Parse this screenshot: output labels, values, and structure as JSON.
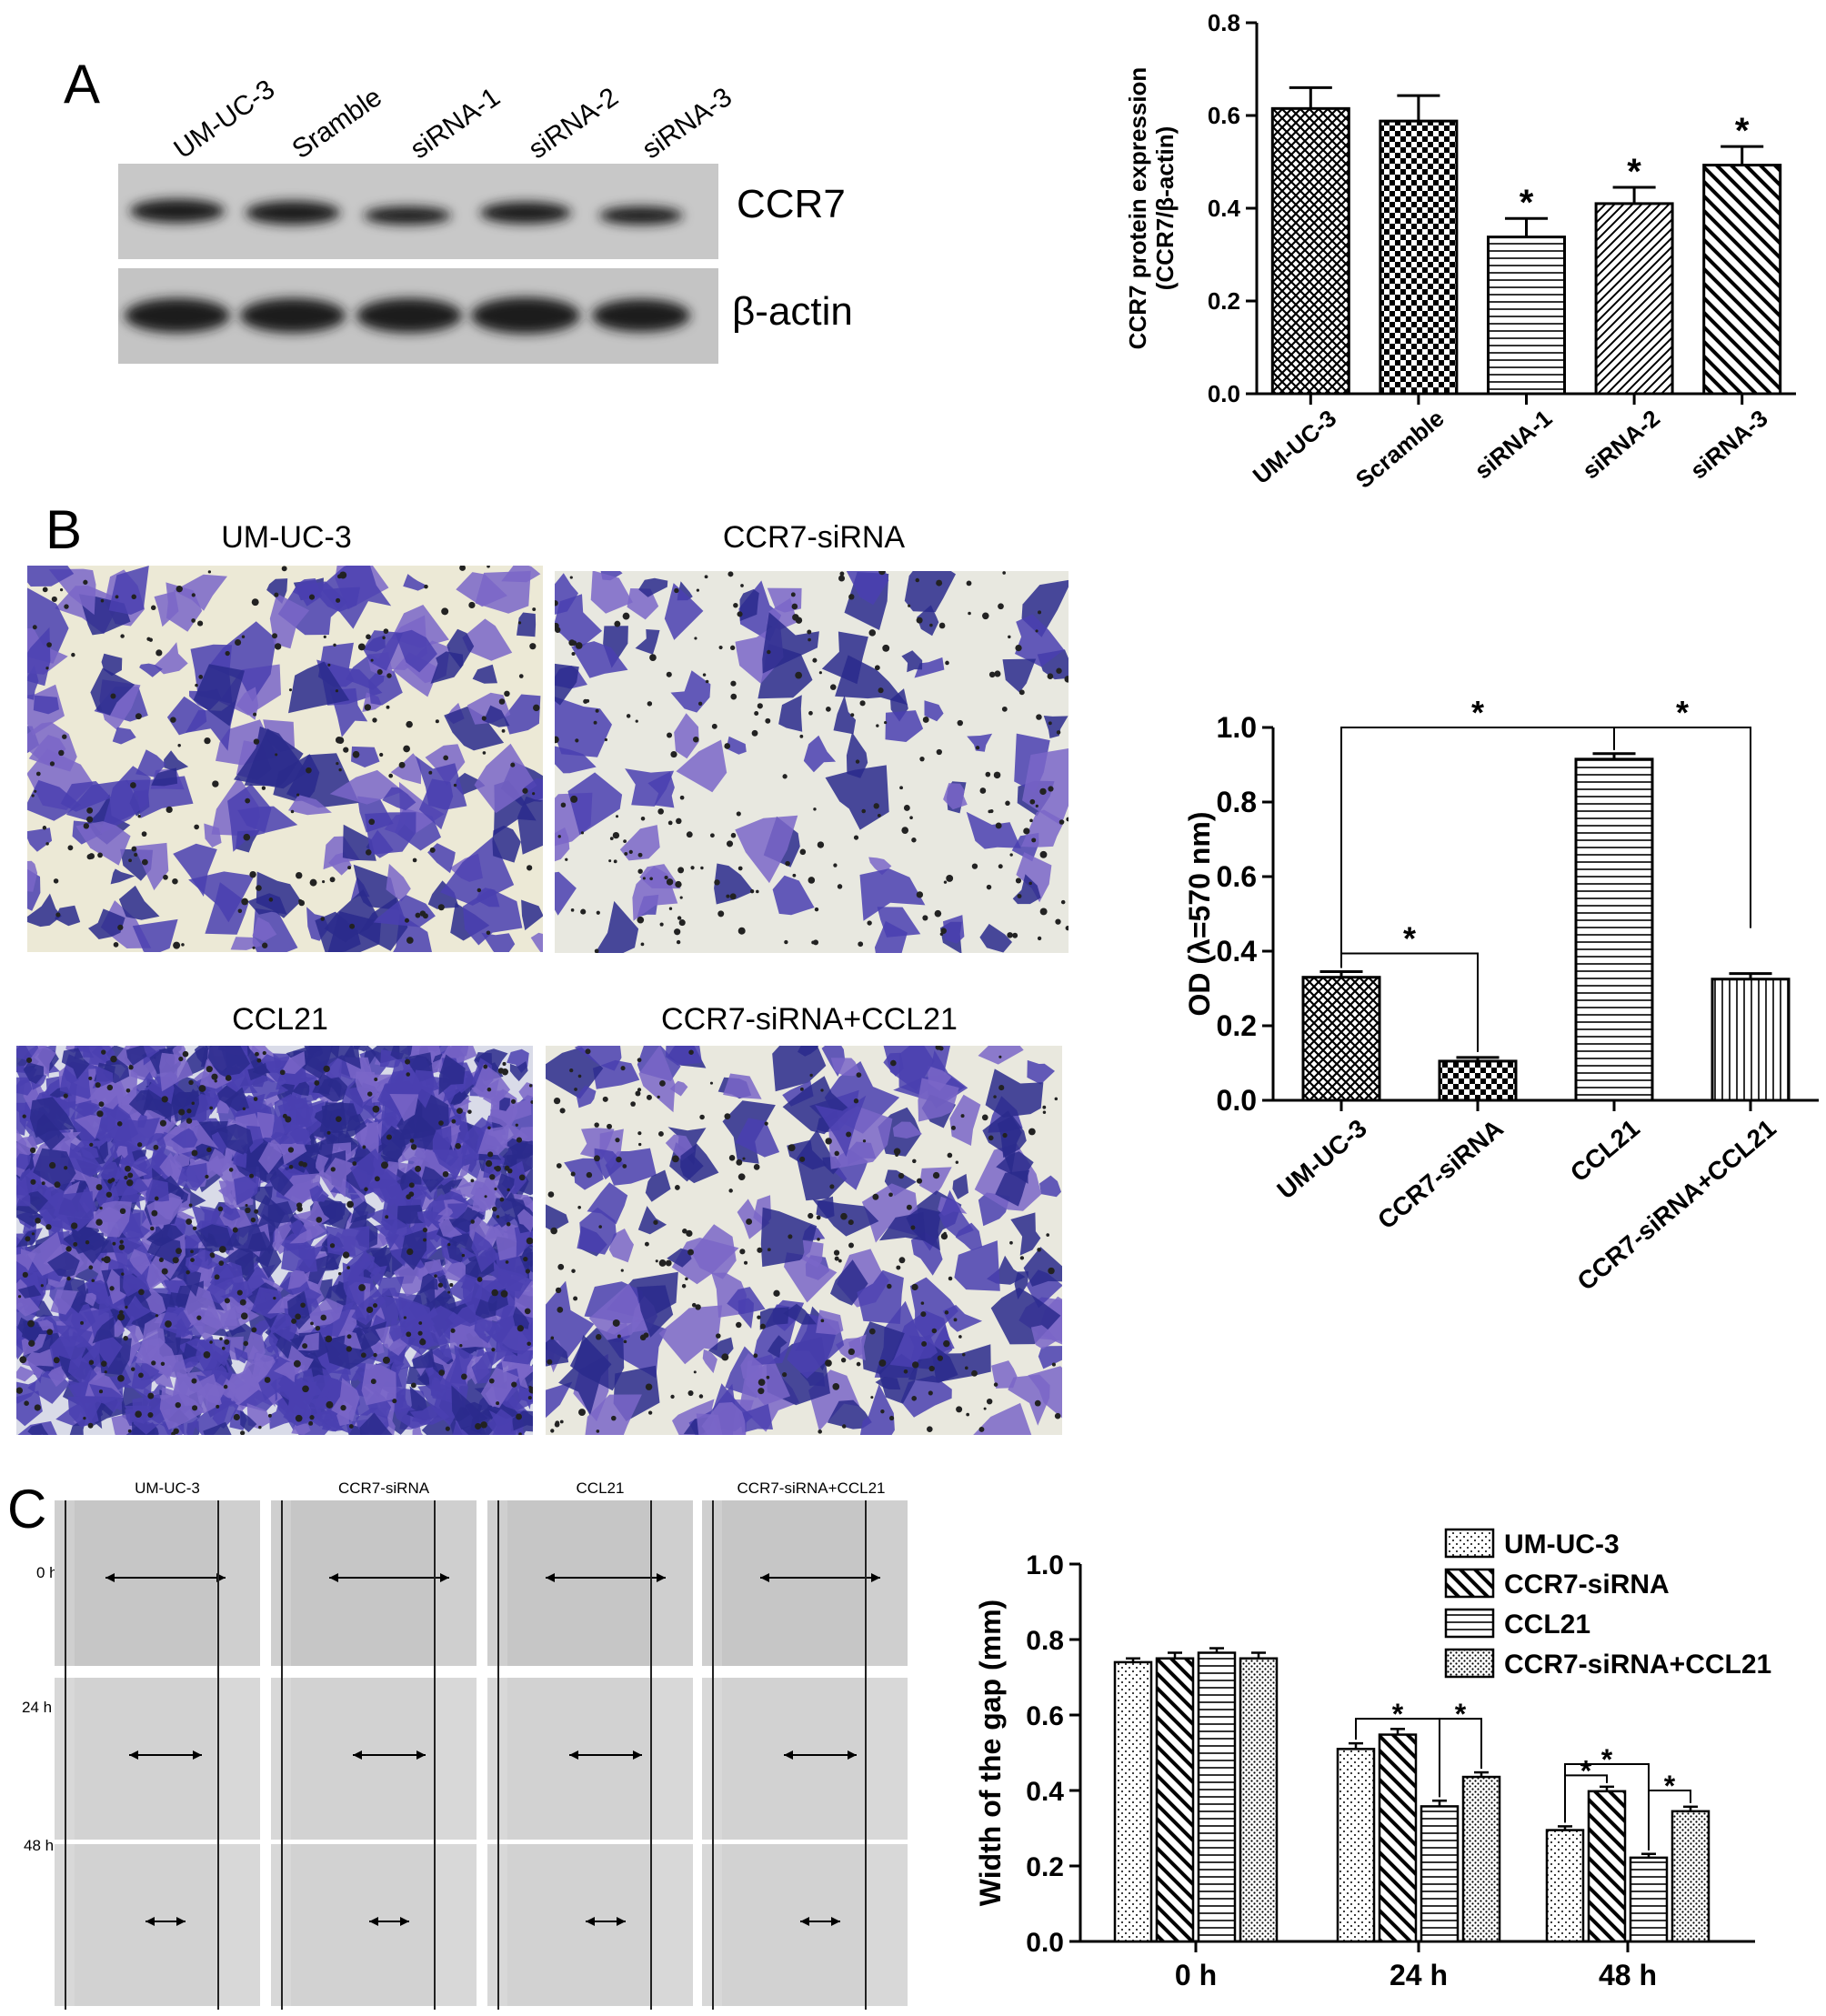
{
  "panels": {
    "a": "A",
    "b": "B",
    "c": "C"
  },
  "western_blot": {
    "lanes": [
      "UM-UC-3",
      "Sramble",
      "siRNA-1",
      "siRNA-2",
      "siRNA-3"
    ],
    "bands": [
      "CCR7",
      "β-actin"
    ]
  },
  "transwell": {
    "images": [
      "UM-UC-3",
      "CCR7-siRNA",
      "CCL21",
      "CCR7-siRNA+CCL21"
    ]
  },
  "wound": {
    "columns": [
      "UM-UC-3",
      "CCR7-siRNA",
      "CCL21",
      "CCR7-siRNA+CCL21"
    ],
    "rows": [
      "0 h",
      "24 h",
      "48 h"
    ]
  },
  "chart_data": [
    {
      "type": "bar",
      "categories": [
        "UM-UC-3",
        "Scramble",
        "siRNA-1",
        "siRNA-2",
        "siRNA-3"
      ],
      "values": [
        0.615,
        0.588,
        0.338,
        0.41,
        0.493
      ],
      "errors": [
        0.045,
        0.055,
        0.04,
        0.035,
        0.04
      ],
      "significance": [
        "",
        "",
        "*",
        "*",
        "*"
      ],
      "ylabel": "CCR7 protein expression (CCR7/β-actin)",
      "ylim": [
        0,
        0.8
      ],
      "yticks": [
        "0.0",
        "0.2",
        "0.4",
        "0.6",
        "0.8"
      ],
      "grid": false
    },
    {
      "type": "bar",
      "categories": [
        "UM-UC-3",
        "CCR7-siRNA",
        "CCL21",
        "CCR7-siRNA+CCL21"
      ],
      "values": [
        0.33,
        0.105,
        0.915,
        0.325
      ],
      "errors": [
        0.015,
        0.01,
        0.015,
        0.015
      ],
      "significance_brackets": [
        {
          "from": 0,
          "to": 2,
          "label": "*"
        },
        {
          "from": 2,
          "to": 3,
          "label": "*"
        },
        {
          "from": 0,
          "to": 1,
          "label": "*"
        }
      ],
      "ylabel": "OD (λ=570 nm)",
      "ylim": [
        0,
        1.0
      ],
      "yticks": [
        "0.0",
        "0.2",
        "0.4",
        "0.6",
        "0.8",
        "1.0"
      ],
      "grid": false
    },
    {
      "type": "bar",
      "categories": [
        "0 h",
        "24 h",
        "48 h"
      ],
      "series": [
        {
          "name": "UM-UC-3",
          "values": [
            0.74,
            0.51,
            0.295
          ],
          "errors": [
            0.01,
            0.015,
            0.01
          ]
        },
        {
          "name": "CCR7-siRNA",
          "values": [
            0.75,
            0.548,
            0.398
          ],
          "errors": [
            0.015,
            0.015,
            0.012
          ]
        },
        {
          "name": "CCL21",
          "values": [
            0.765,
            0.358,
            0.222
          ],
          "errors": [
            0.012,
            0.015,
            0.01
          ]
        },
        {
          "name": "CCR7-siRNA+CCL21",
          "values": [
            0.75,
            0.436,
            0.345
          ],
          "errors": [
            0.015,
            0.012,
            0.012
          ]
        }
      ],
      "significance_brackets": [
        {
          "group": 1,
          "from": 0,
          "to": 2,
          "label": "*"
        },
        {
          "group": 1,
          "from": 2,
          "to": 3,
          "label": "*"
        },
        {
          "group": 2,
          "from": 0,
          "to": 2,
          "label": "*"
        },
        {
          "group": 2,
          "from": 0,
          "to": 1,
          "label": "*"
        },
        {
          "group": 2,
          "from": 2,
          "to": 3,
          "label": "*"
        }
      ],
      "ylabel": "Width of the gap (mm)",
      "ylim": [
        0,
        1.0
      ],
      "yticks": [
        "0.0",
        "0.2",
        "0.4",
        "0.6",
        "0.8",
        "1.0"
      ],
      "legend_position": "top-right",
      "grid": false
    }
  ]
}
